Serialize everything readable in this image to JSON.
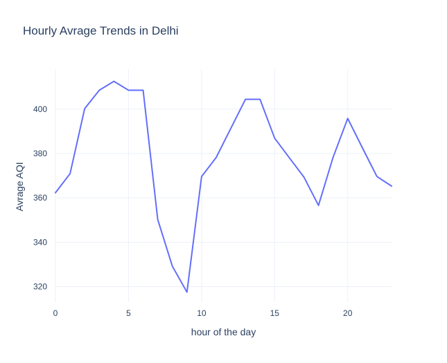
{
  "chart_data": {
    "type": "line",
    "title": "Hourly Avrage Trends in Delhi",
    "xlabel": "hour of the day",
    "ylabel": "Avrage AQI",
    "xlim": [
      0,
      23
    ],
    "ylim": [
      313,
      418
    ],
    "x_ticks": [
      0,
      5,
      10,
      15,
      20
    ],
    "y_ticks": [
      320,
      340,
      360,
      380,
      400
    ],
    "grid": true,
    "line_color": "#636efa",
    "series": [
      {
        "x": [
          0,
          1,
          2,
          3,
          4,
          5,
          6,
          7,
          8,
          9,
          10,
          11,
          12,
          13,
          14,
          15,
          16,
          17,
          18,
          19,
          20,
          21,
          22,
          23
        ],
        "values": [
          362.3,
          370.9,
          400.2,
          408.5,
          412.5,
          408.5,
          408.5,
          350.2,
          329.2,
          317.5,
          369.6,
          378.2,
          391.3,
          404.4,
          404.4,
          386.9,
          378.1,
          369.4,
          356.6,
          378.3,
          395.8,
          382.6,
          369.6,
          365.3
        ]
      }
    ]
  }
}
